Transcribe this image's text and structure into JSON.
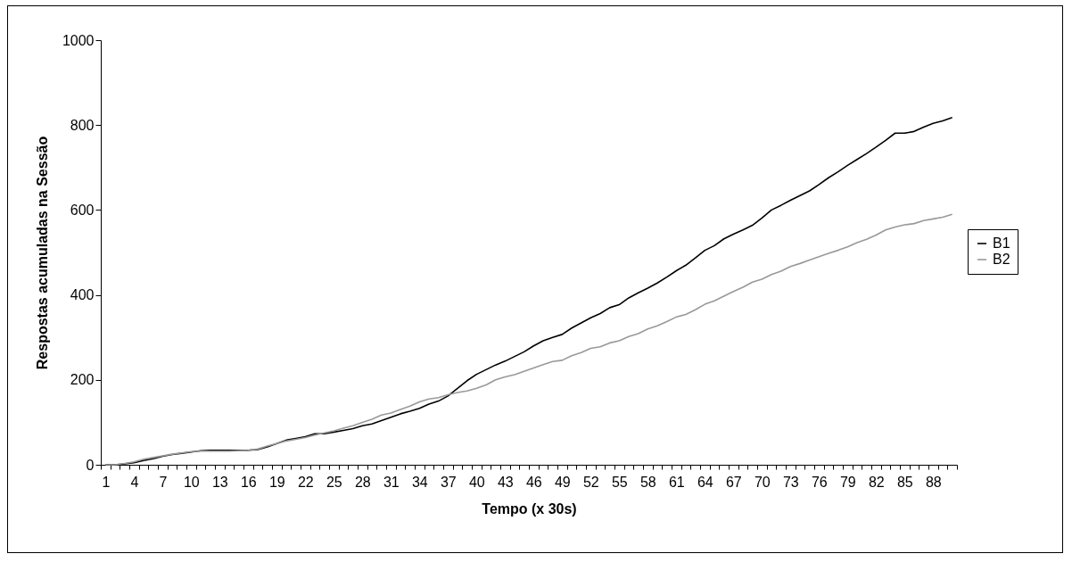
{
  "chart_data": {
    "type": "line",
    "xlabel": "Tempo (x 30s)",
    "ylabel": "Respostas acumuladas na Sessão",
    "categories": [
      "1",
      null,
      null,
      "4",
      null,
      null,
      "7",
      null,
      null,
      "10",
      null,
      null,
      "13",
      null,
      null,
      "16",
      null,
      null,
      "19",
      null,
      null,
      "22",
      null,
      null,
      "25",
      null,
      null,
      "28",
      null,
      null,
      "31",
      null,
      null,
      "34",
      null,
      null,
      "37",
      null,
      null,
      "40",
      null,
      null,
      "43",
      null,
      null,
      "46",
      null,
      null,
      "49",
      null,
      null,
      "52",
      null,
      null,
      "55",
      null,
      null,
      "58",
      null,
      null,
      "61",
      null,
      null,
      "64",
      null,
      null,
      "67",
      null,
      null,
      "70",
      null,
      null,
      "73",
      null,
      null,
      "76",
      null,
      null,
      "79",
      null,
      null,
      "82",
      null,
      null,
      "85",
      null,
      null,
      "88",
      null,
      null
    ],
    "series": [
      {
        "name": "B1",
        "color": "#000000",
        "values": [
          0,
          0,
          2,
          5,
          10,
          14,
          20,
          24,
          27,
          30,
          33,
          34,
          34,
          34,
          34,
          34,
          36,
          42,
          50,
          58,
          62,
          66,
          73,
          73,
          77,
          81,
          85,
          92,
          96,
          104,
          112,
          120,
          126,
          133,
          143,
          150,
          162,
          180,
          198,
          213,
          224,
          235,
          244,
          255,
          266,
          280,
          292,
          300,
          307,
          322,
          334,
          346,
          356,
          370,
          377,
          393,
          405,
          416,
          428,
          442,
          457,
          470,
          487,
          505,
          516,
          532,
          543,
          553,
          564,
          581,
          600,
          611,
          623,
          634,
          645,
          660,
          676,
          690,
          705,
          719,
          733,
          748,
          764,
          781,
          781,
          785,
          795,
          804,
          810,
          818
        ]
      },
      {
        "name": "B2",
        "color": "#999999",
        "values": [
          0,
          0,
          3,
          7,
          13,
          17,
          21,
          25,
          28,
          31,
          32,
          32,
          32,
          32,
          33,
          34,
          37,
          44,
          50,
          56,
          60,
          64,
          70,
          75,
          80,
          86,
          92,
          100,
          107,
          117,
          122,
          130,
          138,
          148,
          155,
          158,
          165,
          170,
          174,
          180,
          188,
          200,
          207,
          212,
          220,
          228,
          236,
          243,
          246,
          257,
          264,
          274,
          278,
          287,
          292,
          302,
          309,
          320,
          327,
          337,
          348,
          354,
          365,
          378,
          386,
          397,
          408,
          418,
          430,
          437,
          448,
          456,
          467,
          474,
          482,
          490,
          498,
          505,
          513,
          523,
          531,
          541,
          553,
          560,
          565,
          568,
          575,
          579,
          583,
          590
        ]
      }
    ],
    "ylim": [
      0,
      1000
    ],
    "yticks": [
      0,
      200,
      400,
      600,
      800,
      1000
    ],
    "grid": false,
    "legend": "right",
    "marker": "none",
    "line_style": "solid"
  }
}
